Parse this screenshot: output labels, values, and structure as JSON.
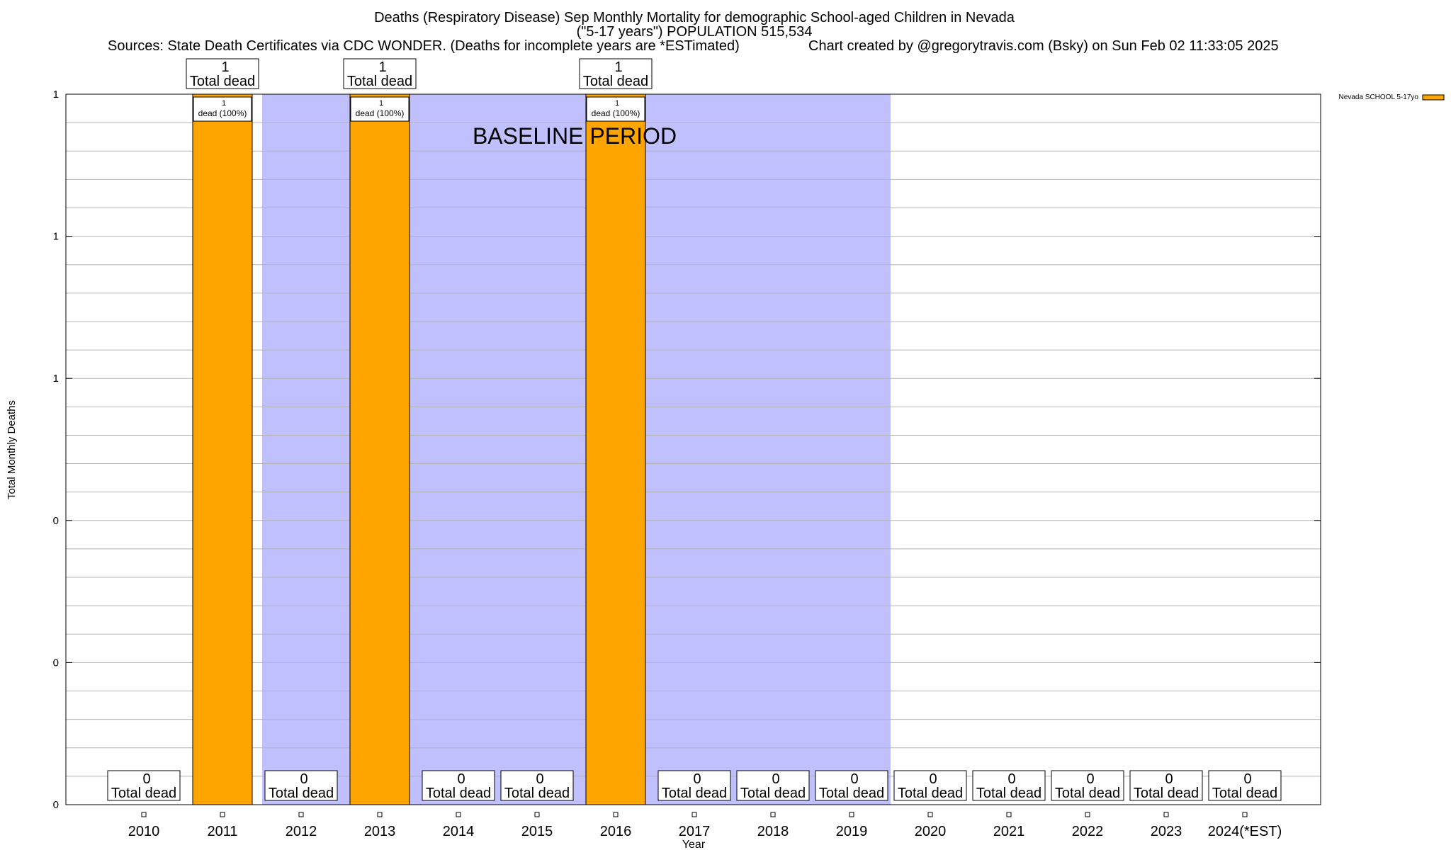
{
  "chart_data": {
    "type": "bar",
    "title_lines": [
      "Deaths (Respiratory Disease) Sep Monthly Mortality for demographic School-aged Children in Nevada",
      "(\"5-17 years\") POPULATION 515,534"
    ],
    "sources": "Sources: State Death Certificates via CDC WONDER. (Deaths for incomplete years are *ESTimated)",
    "credit": "Chart created by @gregorytravis.com (Bsky) on Sun Feb 02 11:33:05 2025",
    "xlabel": "Year",
    "ylabel": "Total Monthly Deaths",
    "ylim": [
      0,
      1
    ],
    "y_tick_labels": [
      "0",
      "0",
      "0",
      "1",
      "1",
      "1"
    ],
    "categories": [
      "2010",
      "2011",
      "2012",
      "2013",
      "2014",
      "2015",
      "2016",
      "2017",
      "2018",
      "2019",
      "2020",
      "2021",
      "2022",
      "2023",
      "2024(*EST)"
    ],
    "series": [
      {
        "name": "Nevada SCHOOL 5-17yo",
        "color": "#FFA500",
        "values": [
          0,
          1,
          0,
          1,
          0,
          0,
          1,
          0,
          0,
          0,
          0,
          0,
          0,
          0,
          0
        ]
      }
    ],
    "total_labels": [
      "0",
      "1",
      "0",
      "1",
      "0",
      "0",
      "1",
      "0",
      "0",
      "0",
      "0",
      "0",
      "0",
      "0",
      "0"
    ],
    "total_suffix": "Total dead",
    "inner_labels": [
      {
        "index": 1,
        "count": "1",
        "text": "dead (100%)"
      },
      {
        "index": 3,
        "count": "1",
        "text": "dead (100%)"
      },
      {
        "index": 6,
        "count": "1",
        "text": "dead (100%)"
      }
    ],
    "baseline": {
      "label": "BASELINE PERIOD",
      "start_index": 2,
      "end_index": 9,
      "color": "#C0C0FF"
    },
    "legend": {
      "label": "Nevada SCHOOL 5-17yo",
      "placement": "top-right"
    },
    "grid": true
  }
}
